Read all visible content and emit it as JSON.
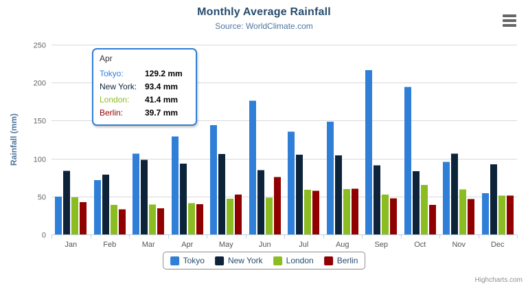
{
  "header": {
    "title": "Monthly Average Rainfall",
    "subtitle": "Source: WorldClimate.com"
  },
  "chart_data": {
    "type": "bar",
    "title": "Monthly Average Rainfall",
    "subtitle": "Source: WorldClimate.com",
    "categories": [
      "Jan",
      "Feb",
      "Mar",
      "Apr",
      "May",
      "Jun",
      "Jul",
      "Aug",
      "Sep",
      "Oct",
      "Nov",
      "Dec"
    ],
    "series": [
      {
        "name": "Tokyo",
        "color": "#2f7ed8",
        "values": [
          49.9,
          71.5,
          106.4,
          129.2,
          144.0,
          176.0,
          135.6,
          148.5,
          216.4,
          194.1,
          95.6,
          54.4
        ]
      },
      {
        "name": "New York",
        "color": "#0d233a",
        "values": [
          83.6,
          78.8,
          98.5,
          93.4,
          106.0,
          84.5,
          105.0,
          104.3,
          91.2,
          83.5,
          106.6,
          92.3
        ]
      },
      {
        "name": "London",
        "color": "#8bbc21",
        "values": [
          48.9,
          38.8,
          39.3,
          41.4,
          47.0,
          48.3,
          59.0,
          59.6,
          52.4,
          65.2,
          59.3,
          51.2
        ]
      },
      {
        "name": "Berlin",
        "color": "#910000",
        "values": [
          42.4,
          33.2,
          34.5,
          39.7,
          52.6,
          75.5,
          57.4,
          60.4,
          47.6,
          39.1,
          46.8,
          51.1
        ]
      }
    ],
    "xlabel": "",
    "ylabel": "Rainfall (mm)",
    "ylim": [
      0,
      250
    ],
    "ytick_interval": 50,
    "grid": true,
    "legend_position": "bottom-center",
    "value_suffix": " mm"
  },
  "tooltip": {
    "header": "Apr",
    "border_color": "#2f7ed8",
    "rows": [
      {
        "name": "Tokyo:",
        "value": "129.2 mm",
        "color": "#2f7ed8"
      },
      {
        "name": "New York:",
        "value": "93.4 mm",
        "color": "#0d233a"
      },
      {
        "name": "London:",
        "value": "41.4 mm",
        "color": "#8bbc21"
      },
      {
        "name": "Berlin:",
        "value": "39.7 mm",
        "color": "#910000"
      }
    ]
  },
  "menu": {
    "icon": "hamburger-icon"
  },
  "credits": {
    "label": "Highcharts.com"
  },
  "colors": {
    "title": "#274b6d",
    "subtitle": "#4d759e",
    "axis_title": "#4d759e",
    "y_label": "#666666",
    "x_label": "#555555",
    "grid": "#d8d8d8",
    "axis_line": "#c0d0e0"
  }
}
